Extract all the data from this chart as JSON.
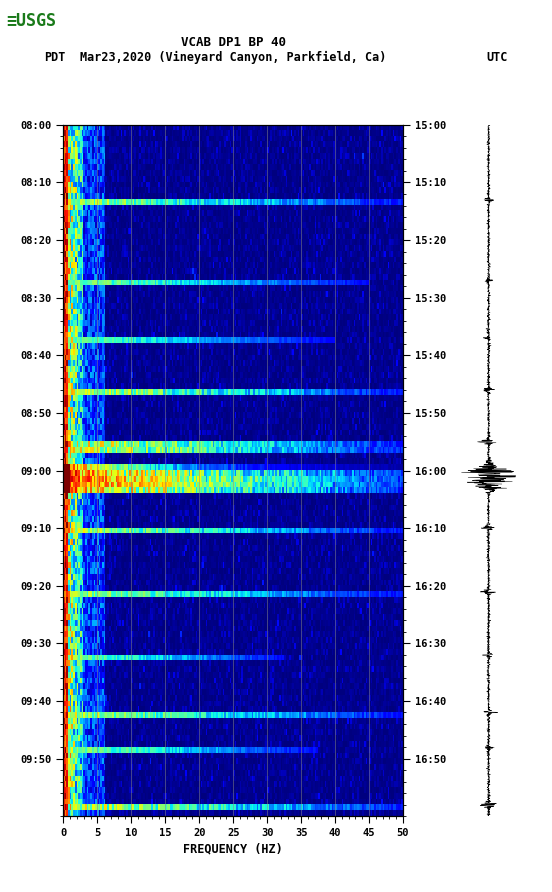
{
  "title_line1": "VCAB DP1 BP 40",
  "title_line2_left": "PDT",
  "title_line2_center": "Mar23,2020 (Vineyard Canyon, Parkfield, Ca)",
  "title_line2_right": "UTC",
  "xlabel": "FREQUENCY (HZ)",
  "left_yticks": [
    "08:00",
    "08:10",
    "08:20",
    "08:30",
    "08:40",
    "08:50",
    "09:00",
    "09:10",
    "09:20",
    "09:30",
    "09:40",
    "09:50"
  ],
  "right_yticks": [
    "15:00",
    "15:10",
    "15:20",
    "15:30",
    "15:40",
    "15:50",
    "16:00",
    "16:10",
    "16:20",
    "16:30",
    "16:40",
    "16:50"
  ],
  "freq_min": 0,
  "freq_max": 50,
  "background_color": "#ffffff",
  "spectrogram_cmap": "jet",
  "grid_color": "#888888",
  "grid_alpha": 0.6,
  "logo_color": "#1a7a1a",
  "fig_width": 5.52,
  "fig_height": 8.92,
  "dpi": 100,
  "event_rows": [
    13,
    27,
    37,
    46,
    55,
    60,
    61,
    62,
    70,
    81,
    92,
    102,
    108,
    118
  ],
  "event_freq_extent": [
    200,
    180,
    160,
    200,
    200,
    200,
    200,
    200,
    200,
    200,
    130,
    200,
    150,
    200
  ],
  "event_intensity": [
    0.7,
    0.6,
    0.55,
    0.75,
    0.8,
    0.95,
    0.95,
    0.95,
    0.7,
    0.65,
    0.6,
    0.7,
    0.6,
    0.75
  ],
  "n_time": 120,
  "n_freq": 200
}
